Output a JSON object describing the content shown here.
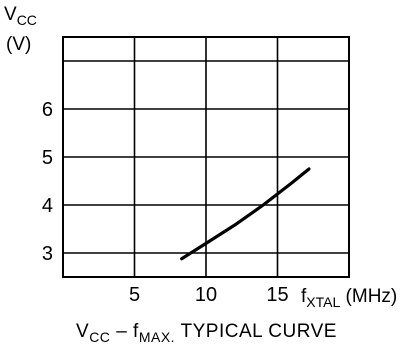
{
  "chart_data": {
    "type": "line",
    "title": "V",
    "title_sub": "CC",
    "title_mid": " – f",
    "title_sub2": "MAX.",
    "title_rest": " TYPICAL CURVE",
    "ylabel": "V",
    "ylabel_sub": "CC",
    "ylabel_unit": "(V)",
    "xlabel": "f",
    "xlabel_sub": "XTAL",
    "xlabel_unit": " (MHz)",
    "xlim": [
      0,
      20
    ],
    "ylim": [
      2.5,
      7.5
    ],
    "x_ticks": [
      5,
      10,
      15
    ],
    "y_ticks": [
      3,
      4,
      5,
      6
    ],
    "grid": true,
    "series": [
      {
        "x": [
          8.3,
          10,
          12,
          14,
          16,
          17.2
        ],
        "y": [
          2.88,
          3.2,
          3.58,
          4.0,
          4.46,
          4.75
        ]
      }
    ]
  }
}
